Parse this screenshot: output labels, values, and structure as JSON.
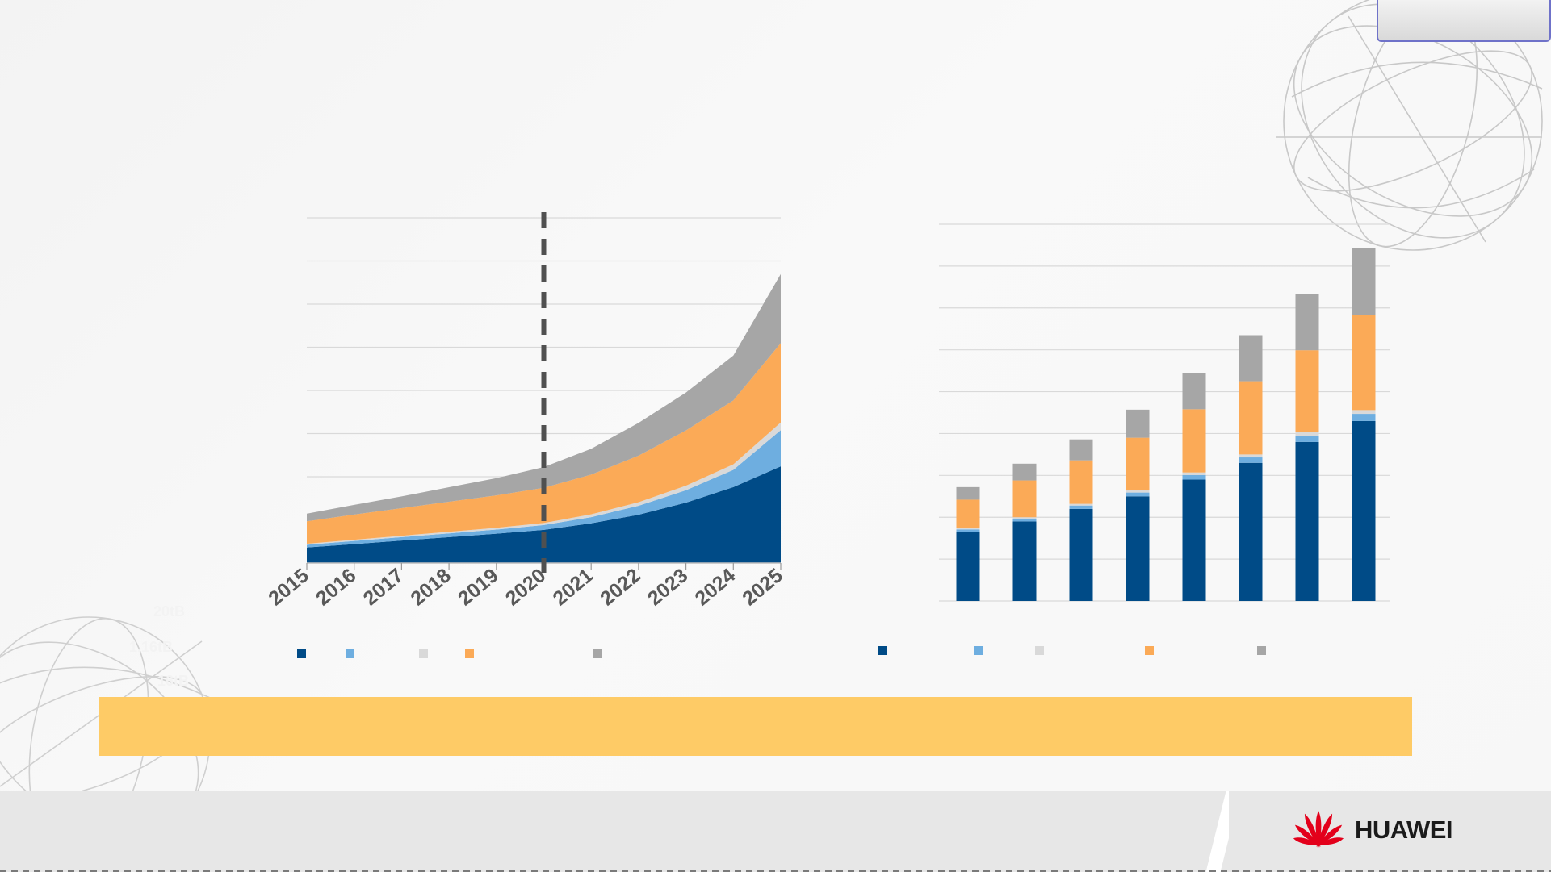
{
  "colors": {
    "navy": "#004b87",
    "lightblue": "#6eaee0",
    "lightgray": "#d9d9d9",
    "orange": "#fbaa57",
    "gray": "#a6a6a6",
    "banner": "#fecb66",
    "brand_red": "#e3001b"
  },
  "brand": {
    "name": "HUAWEI"
  },
  "ghost_labels": [
    "20tB",
    "1.16tB",
    "16tB"
  ],
  "legend_left": [
    "",
    "",
    "",
    "",
    ""
  ],
  "legend_right": [
    "",
    "",
    "",
    "",
    ""
  ],
  "banner_text": "",
  "chart_data": [
    {
      "type": "area",
      "stacked": true,
      "categories": [
        "2015",
        "2016",
        "2017",
        "2018",
        "2019",
        "2020",
        "2021",
        "2022",
        "2023",
        "2024",
        "2025"
      ],
      "series": [
        {
          "values": [
            4.5,
            5.5,
            6.5,
            7.5,
            8.5,
            9.6,
            11.5,
            14,
            17.5,
            22,
            28
          ]
        },
        {
          "values": [
            0.8,
            0.9,
            1.0,
            1.1,
            1.2,
            1.4,
            1.8,
            2.6,
            3.6,
            5,
            10.5
          ]
        },
        {
          "values": [
            0.3,
            0.35,
            0.4,
            0.45,
            0.5,
            0.6,
            0.8,
            1.0,
            1.3,
            1.6,
            2.2
          ]
        },
        {
          "values": [
            6.5,
            7.3,
            8.0,
            8.7,
            9.4,
            10.2,
            11.5,
            13.5,
            16,
            18.5,
            23
          ]
        },
        {
          "values": [
            2.2,
            2.8,
            3.4,
            4.2,
            5.0,
            6.0,
            7.5,
            9.5,
            11,
            13,
            20
          ]
        }
      ],
      "ylim": [
        0,
        100
      ],
      "grid": true,
      "marker_line_at": "2020"
    },
    {
      "type": "bar",
      "stacked": true,
      "bars": 8,
      "series": [
        {
          "values": [
            16.5,
            19,
            22,
            25,
            29,
            33,
            38,
            43
          ]
        },
        {
          "values": [
            0.6,
            0.7,
            0.8,
            0.9,
            1.1,
            1.3,
            1.5,
            1.7
          ]
        },
        {
          "values": [
            0.3,
            0.3,
            0.4,
            0.5,
            0.6,
            0.7,
            0.8,
            0.9
          ]
        },
        {
          "values": [
            6.8,
            8.8,
            10.4,
            12.6,
            15.1,
            17.5,
            19.6,
            22.7
          ]
        },
        {
          "values": [
            3.0,
            4.0,
            5.0,
            6.7,
            8.7,
            11.0,
            13.4,
            16.0
          ]
        }
      ],
      "ylim": [
        0,
        90
      ],
      "grid": true
    }
  ]
}
